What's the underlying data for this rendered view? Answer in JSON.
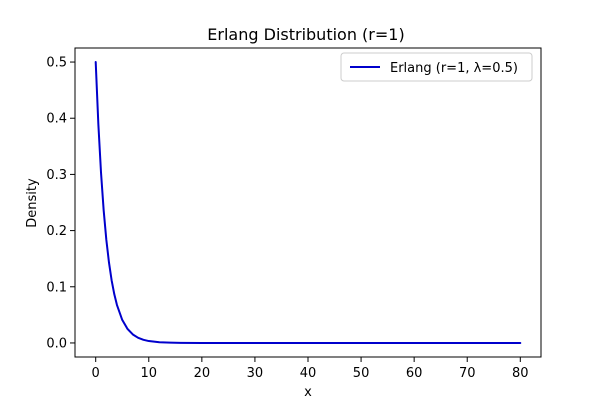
{
  "chart_data": {
    "type": "line",
    "title": "Erlang Distribution (r=1)",
    "xlabel": "x",
    "ylabel": "Density",
    "xlim": [
      -3.9,
      83.9
    ],
    "ylim": [
      -0.025,
      0.525
    ],
    "xticks": [
      0,
      10,
      20,
      30,
      40,
      50,
      60,
      70,
      80
    ],
    "xtick_labels": [
      "0",
      "10",
      "20",
      "30",
      "40",
      "50",
      "60",
      "70",
      "80"
    ],
    "yticks": [
      0.0,
      0.1,
      0.2,
      0.3,
      0.4,
      0.5
    ],
    "ytick_labels": [
      "0.0",
      "0.1",
      "0.2",
      "0.3",
      "0.4",
      "0.5"
    ],
    "grid": false,
    "legend_position": "top-right",
    "series": [
      {
        "name": "Erlang (r=1, λ=0.5)",
        "color": "#0000cc",
        "x": [
          0,
          0.5,
          1,
          1.5,
          2,
          2.5,
          3,
          3.5,
          4,
          5,
          6,
          7,
          8,
          9,
          10,
          12,
          14,
          16,
          20,
          25,
          30,
          40,
          50,
          60,
          70,
          80
        ],
        "y": [
          0.5,
          0.3894,
          0.3033,
          0.2362,
          0.1839,
          0.1433,
          0.1116,
          0.0869,
          0.0677,
          0.041,
          0.0249,
          0.0151,
          0.0092,
          0.0056,
          0.0034,
          0.0012,
          0.0005,
          0.0002,
          0.0,
          0.0,
          0.0,
          0.0,
          0.0,
          0.0,
          0.0,
          0.0
        ]
      }
    ]
  }
}
